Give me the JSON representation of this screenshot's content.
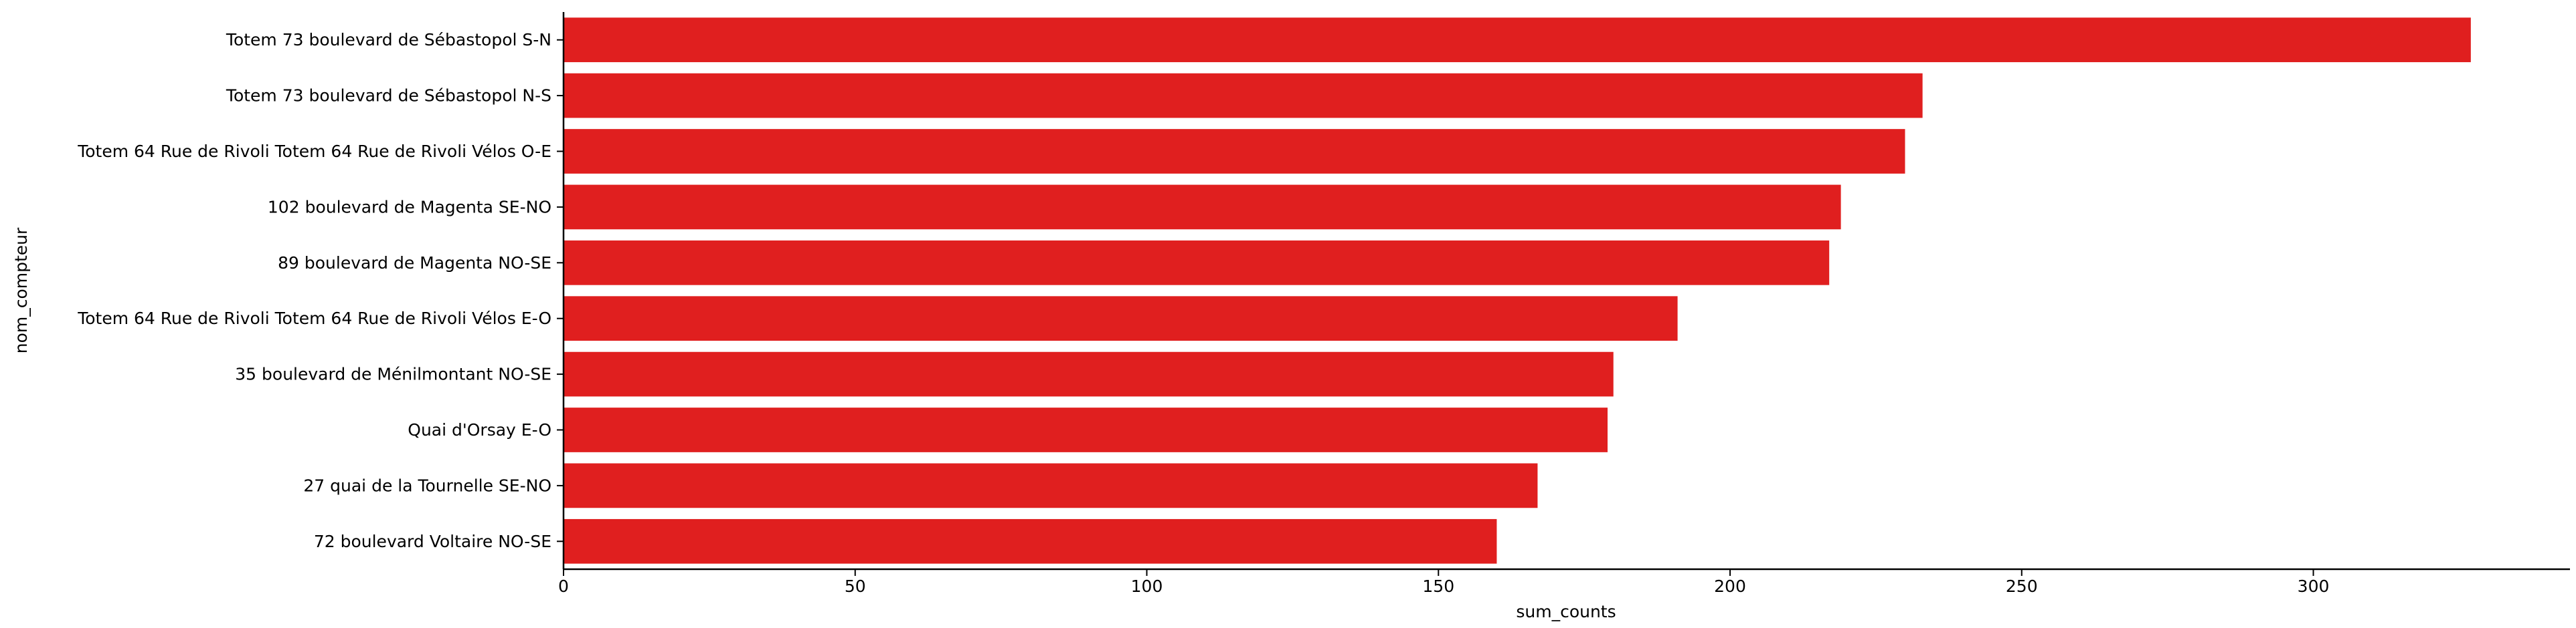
{
  "chart_data": {
    "type": "bar",
    "orientation": "horizontal",
    "categories": [
      "Totem 73 boulevard de Sébastopol S-N",
      "Totem 73 boulevard de Sébastopol N-S",
      "Totem 64 Rue de Rivoli Totem 64 Rue de Rivoli Vélos O-E",
      "102 boulevard de Magenta SE-NO",
      "89 boulevard de Magenta NO-SE",
      "Totem 64 Rue de Rivoli Totem 64 Rue de Rivoli Vélos E-O",
      "35 boulevard de Ménilmontant NO-SE",
      "Quai d'Orsay E-O",
      "27 quai de la Tournelle SE-NO",
      "72 boulevard Voltaire NO-SE"
    ],
    "values": [
      327,
      233,
      230,
      219,
      217,
      191,
      180,
      179,
      167,
      160
    ],
    "xlabel": "sum_counts",
    "ylabel": "nom_compteur",
    "xlim": [
      0,
      344
    ],
    "xticks": [
      0,
      50,
      100,
      150,
      200,
      250,
      300
    ],
    "grid": false,
    "legend": "none",
    "bar_color": "#e01f1f"
  }
}
